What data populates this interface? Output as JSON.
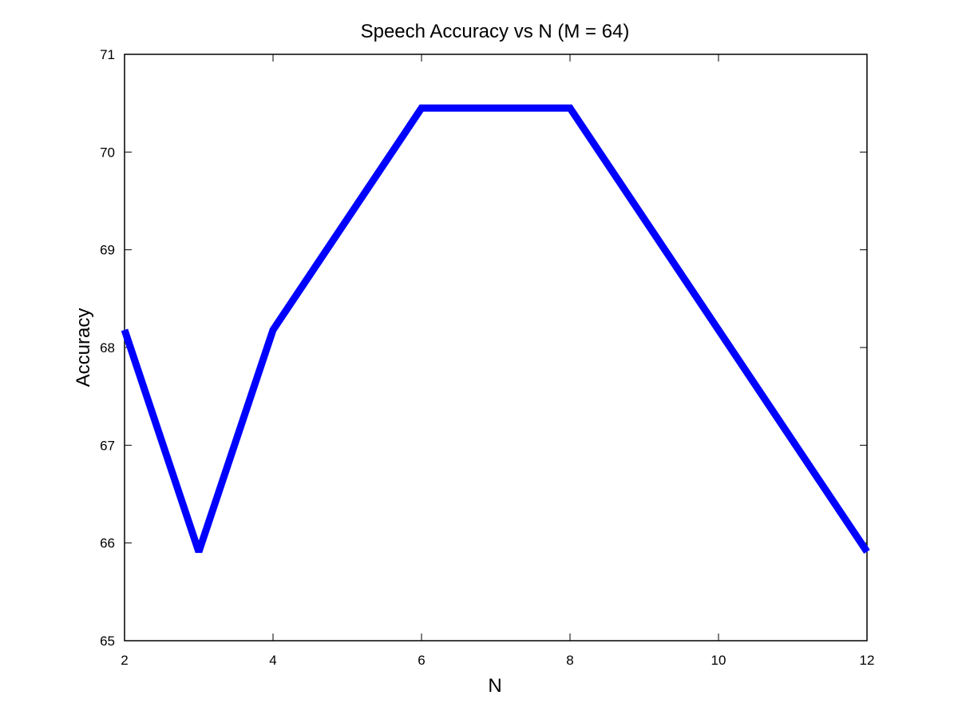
{
  "chart_data": {
    "type": "line",
    "title": "Speech Accuracy vs N (M = 64)",
    "xlabel": "N",
    "ylabel": "Accuracy",
    "xlim": [
      2,
      12
    ],
    "ylim": [
      65,
      71
    ],
    "xticks": [
      2,
      4,
      6,
      8,
      10,
      12
    ],
    "yticks": [
      65,
      66,
      67,
      68,
      69,
      70,
      71
    ],
    "grid": false,
    "series": [
      {
        "name": "Accuracy",
        "color": "#0000ff",
        "x": [
          2,
          3,
          4,
          6,
          8,
          12
        ],
        "y": [
          68.18,
          65.91,
          68.18,
          70.45,
          70.45,
          65.91
        ]
      }
    ]
  }
}
